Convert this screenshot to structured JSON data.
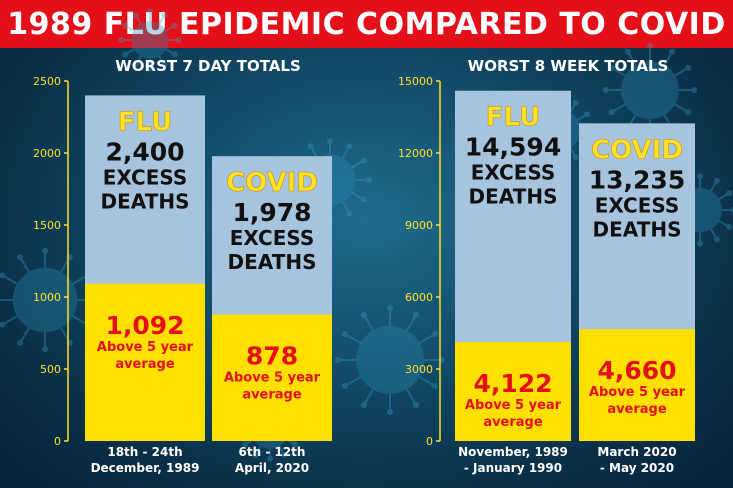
{
  "title": "1989 FLU EPIDEMIC COMPARED TO COVID",
  "colors": {
    "banner": "#e3101a",
    "excess_total": "#a7c4de",
    "above_average": "#ffe000",
    "axis": "#ffe12a",
    "label_red": "#e3101a"
  },
  "chart_data": [
    {
      "type": "bar",
      "title": "WORST 7 DAY TOTALS",
      "ylim": [
        0,
        2500
      ],
      "yticks": [
        "0",
        "500",
        "1000",
        "1500",
        "2000",
        "2500"
      ],
      "categories": [
        "18th - 24th December, 1989",
        "6th - 12th April, 2020"
      ],
      "category_lines": [
        [
          "18th - 24th",
          "December, 1989"
        ],
        [
          "6th - 12th",
          "April, 2020"
        ]
      ],
      "series": [
        {
          "name": "EXCESS DEATHS",
          "values": [
            2400,
            1978
          ]
        },
        {
          "name": "Above 5 year average",
          "values": [
            1092,
            878
          ]
        }
      ],
      "labels": [
        {
          "series_label": "FLU",
          "total": "2,400",
          "excess": [
            "EXCESS",
            "DEATHS"
          ],
          "above_value": "1,092",
          "above_text": [
            "Above 5 year",
            "average"
          ]
        },
        {
          "series_label": "COVID",
          "total": "1,978",
          "excess": [
            "EXCESS",
            "DEATHS"
          ],
          "above_value": "878",
          "above_text": [
            "Above 5 year",
            "average"
          ]
        }
      ]
    },
    {
      "type": "bar",
      "title": "WORST 8 WEEK TOTALS",
      "ylim": [
        0,
        15000
      ],
      "yticks": [
        "0",
        "3000",
        "6000",
        "9000",
        "12000",
        "15000"
      ],
      "categories": [
        "November, 1989 - January 1990",
        "March 2020 - May 2020"
      ],
      "category_lines": [
        [
          "November, 1989",
          "- January 1990"
        ],
        [
          "March 2020",
          "- May 2020"
        ]
      ],
      "series": [
        {
          "name": "EXCESS DEATHS",
          "values": [
            14594,
            13235
          ]
        },
        {
          "name": "Above 5 year average",
          "values": [
            4122,
            4660
          ]
        }
      ],
      "labels": [
        {
          "series_label": "FLU",
          "total": "14,594",
          "excess": [
            "EXCESS",
            "DEATHS"
          ],
          "above_value": "4,122",
          "above_text": [
            "Above 5 year",
            "average"
          ]
        },
        {
          "series_label": "COVID",
          "total": "13,235",
          "excess": [
            "EXCESS",
            "DEATHS"
          ],
          "above_value": "4,660",
          "above_text": [
            "Above 5 year",
            "average"
          ]
        }
      ]
    }
  ]
}
